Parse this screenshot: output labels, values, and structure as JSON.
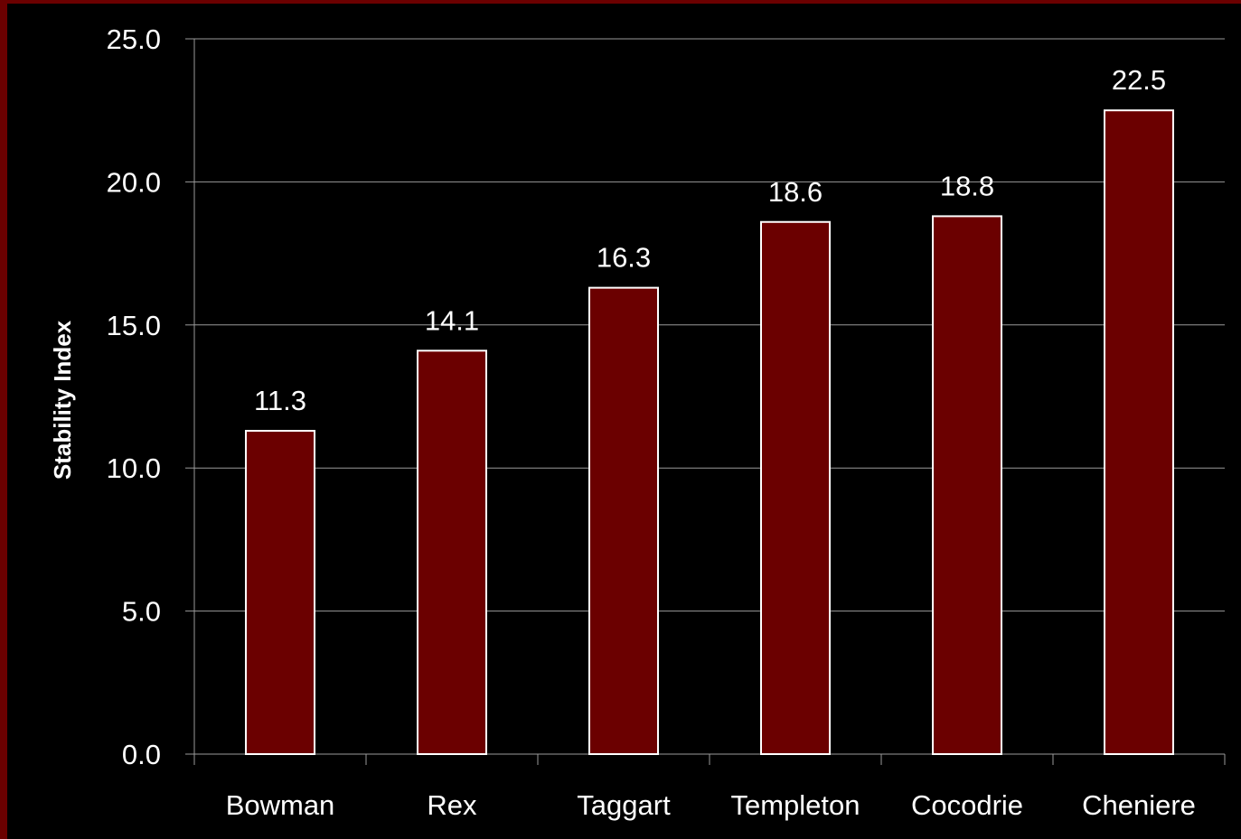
{
  "chart_data": {
    "type": "bar",
    "categories": [
      "Bowman",
      "Rex",
      "Taggart",
      "Templeton",
      "Cocodrie",
      "Cheniere"
    ],
    "values": [
      11.3,
      14.1,
      16.3,
      18.6,
      18.8,
      22.5
    ],
    "data_labels": [
      "11.3",
      "14.1",
      "16.3",
      "18.6",
      "18.8",
      "22.5"
    ],
    "title": "",
    "xlabel": "",
    "ylabel": "Stability Index",
    "ylim": [
      0,
      25
    ],
    "yticks": [
      0,
      5,
      10,
      15,
      20,
      25
    ],
    "ytick_labels": [
      "0.0",
      "5.0",
      "10.0",
      "15.0",
      "20.0",
      "25.0"
    ],
    "grid": true,
    "legend": "none",
    "colors": {
      "background": "#000000",
      "bar_fill": "#6b0000",
      "bar_stroke": "#ffffff",
      "frame": "#6b0000",
      "grid": "#9a9a9a",
      "text": "#ffffff"
    }
  }
}
